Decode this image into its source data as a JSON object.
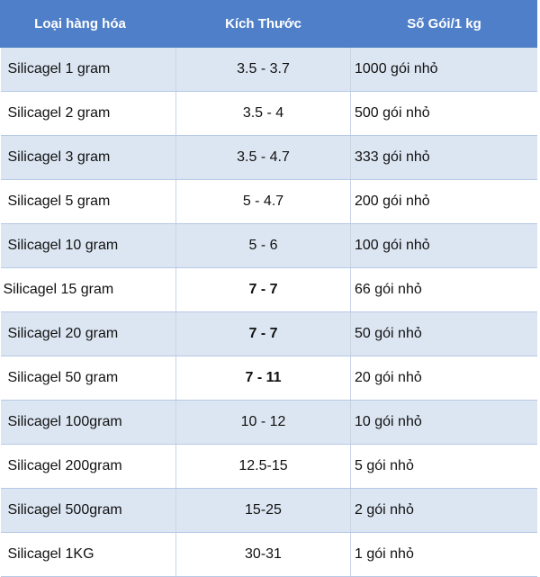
{
  "table": {
    "headers": {
      "name": "Loại hàng hóa",
      "size": "Kích Thước",
      "count": "Số Gói/1 kg"
    },
    "rows": [
      {
        "name": "Silicagel 1 gram",
        "size": "3.5 - 3.7",
        "count": "1000 gói nhỏ"
      },
      {
        "name": "Silicagel 2 gram",
        "size": "3.5 - 4",
        "count": "500 gói nhỏ"
      },
      {
        "name": "Silicagel 3 gram",
        "size": "3.5 - 4.7",
        "count": "333 gói nhỏ"
      },
      {
        "name": "Silicagel 5 gram",
        "size": "5 - 4.7",
        "count": "200 gói nhỏ"
      },
      {
        "name": "Silicagel 10 gram",
        "size": "5 - 6",
        "count": "100 gói nhỏ"
      },
      {
        "name": "Silicagel 15 gram",
        "size": "7 - 7",
        "count": "66 gói nhỏ"
      },
      {
        "name": "Silicagel 20 gram",
        "size": "7 - 7",
        "count": "50 gói nhỏ"
      },
      {
        "name": "Silicagel 50 gram",
        "size": "7 - 11",
        "count": "20 gói nhỏ"
      },
      {
        "name": "Silicagel 100gram",
        "size": "10 - 12",
        "count": "10 gói nhỏ"
      },
      {
        "name": "Silicagel 200gram",
        "size": "12.5-15",
        "count": "5 gói nhỏ"
      },
      {
        "name": "Silicagel 500gram",
        "size": "15-25",
        "count": "2 gói nhỏ"
      },
      {
        "name": "Silicagel 1KG",
        "size": "30-31",
        "count": "1 gói nhỏ"
      }
    ]
  },
  "colors": {
    "header_bg": "#4f7fc8",
    "header_text": "#ffffff",
    "band_row": "#dce6f2",
    "plain_row": "#ffffff"
  }
}
